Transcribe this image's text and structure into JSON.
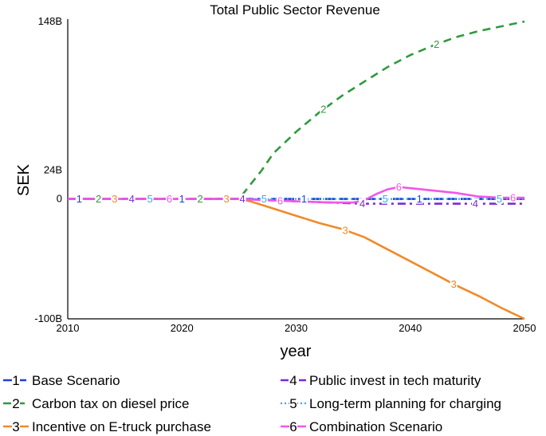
{
  "chart_data": {
    "type": "line",
    "title": "Total Public Sector Revenue",
    "xlabel": "year",
    "ylabel": "SEK",
    "xlim": [
      2010,
      2050
    ],
    "ylim": [
      -100,
      148
    ],
    "x_ticks": [
      "2010",
      "2020",
      "2030",
      "2040",
      "2050"
    ],
    "y_ticks": [
      {
        "value": 148,
        "label": "148B"
      },
      {
        "value": 24,
        "label": "24B"
      },
      {
        "value": 0,
        "label": "0"
      },
      {
        "value": -100,
        "label": "-100B"
      }
    ],
    "legend_position": "bottom",
    "series": [
      {
        "id": "1",
        "name": "Base Scenario",
        "color": "#1f3fd6",
        "dash": "long-dash",
        "points": [
          [
            2010,
            0
          ],
          [
            2025,
            0
          ],
          [
            2030,
            0
          ],
          [
            2035,
            0
          ],
          [
            2040,
            0
          ],
          [
            2045,
            0
          ],
          [
            2050,
            0
          ]
        ],
        "markers": [
          2011,
          2020,
          2030.7,
          2040.8
        ]
      },
      {
        "id": "2",
        "name": "Carbon tax on diesel price",
        "color": "#2e9a3e",
        "dash": "dash",
        "points": [
          [
            2010,
            0
          ],
          [
            2025,
            0
          ],
          [
            2026,
            12
          ],
          [
            2027,
            24
          ],
          [
            2028,
            38
          ],
          [
            2030,
            56
          ],
          [
            2032,
            72
          ],
          [
            2034,
            86
          ],
          [
            2036,
            98
          ],
          [
            2038,
            110
          ],
          [
            2040,
            120
          ],
          [
            2042,
            128
          ],
          [
            2044,
            135
          ],
          [
            2046,
            140
          ],
          [
            2048,
            144
          ],
          [
            2050,
            148
          ]
        ],
        "markers": [
          2012.7,
          2021.6,
          2032.4,
          2042.3
        ]
      },
      {
        "id": "3",
        "name": "Incentive on E-truck purchase",
        "color": "#f08a2a",
        "dash": "solid",
        "points": [
          [
            2010,
            0
          ],
          [
            2025,
            0
          ],
          [
            2026,
            -2
          ],
          [
            2028,
            -8
          ],
          [
            2030,
            -14
          ],
          [
            2032,
            -20
          ],
          [
            2034,
            -25
          ],
          [
            2036,
            -32
          ],
          [
            2038,
            -42
          ],
          [
            2040,
            -52
          ],
          [
            2042,
            -62
          ],
          [
            2044,
            -72
          ],
          [
            2046,
            -81
          ],
          [
            2048,
            -91
          ],
          [
            2050,
            -100
          ]
        ],
        "markers": [
          2014.1,
          2023.9,
          2034.3,
          2043.8
        ]
      },
      {
        "id": "4",
        "name": "Public invest in tech maturity",
        "color": "#7a2bd6",
        "dash": "dash-dot",
        "points": [
          [
            2010,
            0
          ],
          [
            2025,
            0
          ],
          [
            2028,
            -1
          ],
          [
            2030,
            -2
          ],
          [
            2033,
            -3
          ],
          [
            2036,
            -4
          ],
          [
            2038,
            -4
          ],
          [
            2040,
            -4
          ],
          [
            2042,
            -4
          ],
          [
            2045,
            -4
          ],
          [
            2050,
            -4
          ]
        ],
        "markers": [
          2015.6,
          2025.3,
          2035.8,
          2045.7
        ]
      },
      {
        "id": "5",
        "name": "Long-term planning for charging",
        "color": "#3aa8f0",
        "dash": "dot",
        "points": [
          [
            2010,
            0
          ],
          [
            2050,
            0
          ]
        ],
        "markers": [
          2017.2,
          2027.2,
          2037.8,
          2047.8
        ]
      },
      {
        "id": "6",
        "name": "Combination Scenario",
        "color": "#f256e8",
        "dash": "solid",
        "points": [
          [
            2010,
            0
          ],
          [
            2025,
            0
          ],
          [
            2027,
            -1
          ],
          [
            2030,
            -2
          ],
          [
            2033,
            -3
          ],
          [
            2035,
            -3
          ],
          [
            2036,
            -1
          ],
          [
            2037,
            4
          ],
          [
            2038,
            8
          ],
          [
            2039,
            10
          ],
          [
            2040,
            9
          ],
          [
            2042,
            7
          ],
          [
            2044,
            5
          ],
          [
            2046,
            2
          ],
          [
            2048,
            1
          ],
          [
            2050,
            1
          ]
        ],
        "markers": [
          2018.9,
          2028.6,
          2039,
          2049
        ]
      }
    ]
  }
}
